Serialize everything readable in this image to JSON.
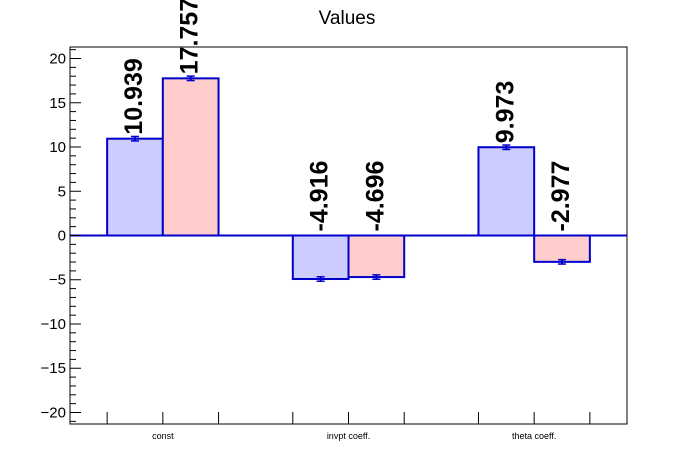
{
  "chart_data": {
    "type": "bar",
    "title": "Values",
    "categories": [
      "const",
      "invpt coeff.",
      "theta coeff."
    ],
    "series": [
      {
        "values": [
          10.939,
          -4.916,
          9.973
        ],
        "errors": [
          0.25,
          0.25,
          0.25
        ],
        "color": "#ccccff"
      },
      {
        "values": [
          17.757,
          -4.696,
          -2.977
        ],
        "errors": [
          0.25,
          0.25,
          0.25
        ],
        "color": "#ffcccc"
      }
    ],
    "labels": [
      [
        "10.939",
        "-4.916",
        "9.973"
      ],
      [
        "17.757",
        "-4.696",
        "-2.977"
      ]
    ],
    "ylim": [
      -21.3,
      21.3
    ],
    "yticks": [
      -20,
      -15,
      -10,
      -5,
      0,
      5,
      10,
      15,
      20
    ],
    "ytick_labels": [
      "−20",
      "−15",
      "−10",
      "−5",
      "0",
      "5",
      "10",
      "15",
      "20"
    ],
    "edge_color": "#0000cc",
    "grid": false,
    "xlabel": "",
    "ylabel": ""
  }
}
